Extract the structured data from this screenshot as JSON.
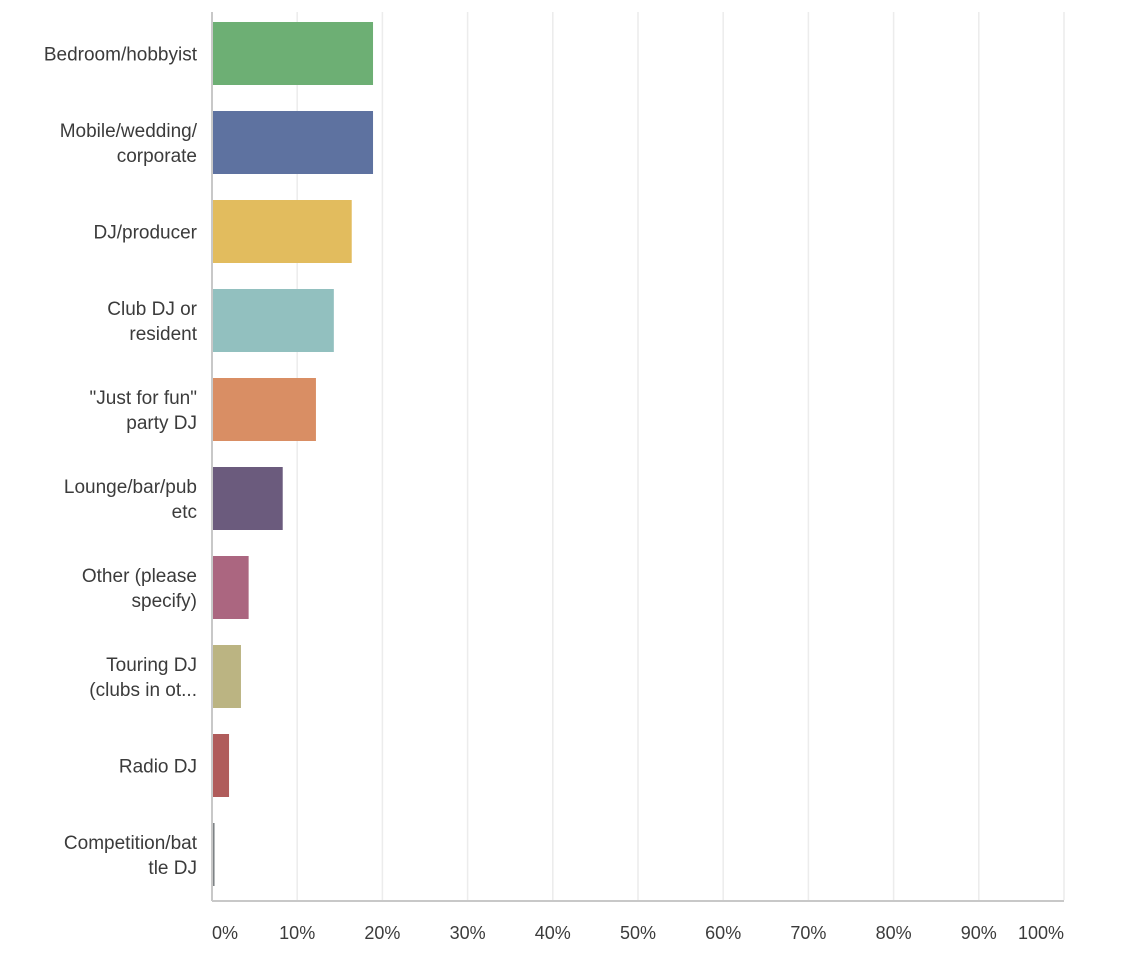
{
  "chart_data": {
    "type": "bar",
    "orientation": "horizontal",
    "title": "",
    "xlabel": "",
    "ylabel": "",
    "xlim": [
      0,
      100
    ],
    "grid": true,
    "categories": [
      [
        "Bedroom/hobbyist"
      ],
      [
        "Mobile/wedding/",
        "corporate"
      ],
      [
        "DJ/producer"
      ],
      [
        "Club DJ or",
        "resident"
      ],
      [
        "\"Just for fun\"",
        "party DJ"
      ],
      [
        "Lounge/bar/pub",
        "etc"
      ],
      [
        "Other (please",
        "specify)"
      ],
      [
        "Touring DJ",
        "(clubs in ot..."
      ],
      [
        "Radio DJ"
      ],
      [
        "Competition/bat",
        "tle DJ"
      ]
    ],
    "values": [
      18.9,
      18.9,
      16.4,
      14.3,
      12.2,
      8.3,
      4.3,
      3.4,
      2.0,
      0.3
    ],
    "colors": [
      "#6daf74",
      "#5e72a0",
      "#e2bc5e",
      "#92c0bf",
      "#d98e64",
      "#6b5b7d",
      "#ab6680",
      "#bbb482",
      "#b05c5b",
      "#7e8285"
    ],
    "ticks": [
      "0%",
      "10%",
      "20%",
      "30%",
      "40%",
      "50%",
      "60%",
      "70%",
      "80%",
      "90%",
      "100%"
    ]
  }
}
